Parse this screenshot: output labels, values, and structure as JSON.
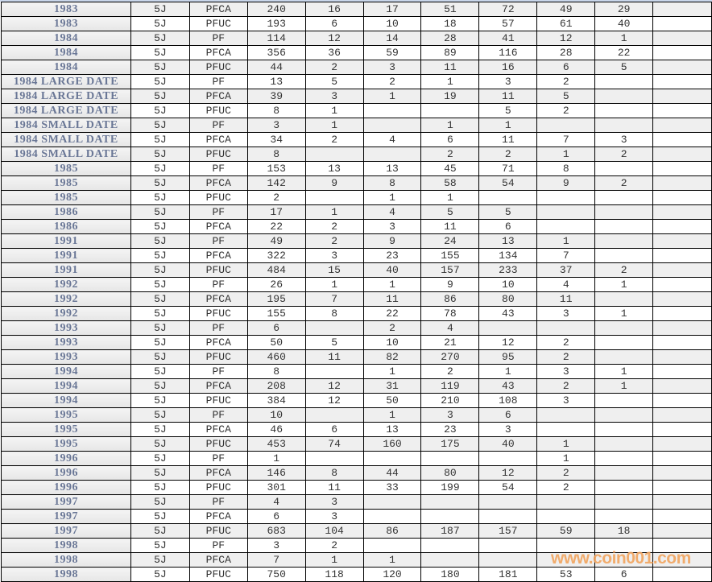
{
  "sheet": {
    "rows": [
      [
        "1983",
        "5J",
        "PFCA",
        "240",
        "16",
        "17",
        "51",
        "72",
        "49",
        "29",
        ""
      ],
      [
        "1983",
        "5J",
        "PFUC",
        "193",
        "6",
        "10",
        "18",
        "57",
        "61",
        "40",
        ""
      ],
      [
        "1984",
        "5J",
        "PF",
        "114",
        "12",
        "14",
        "28",
        "41",
        "12",
        "1",
        ""
      ],
      [
        "1984",
        "5J",
        "PFCA",
        "356",
        "36",
        "59",
        "89",
        "116",
        "28",
        "22",
        ""
      ],
      [
        "1984",
        "5J",
        "PFUC",
        "44",
        "2",
        "3",
        "11",
        "16",
        "6",
        "5",
        ""
      ],
      [
        "1984 LARGE DATE",
        "5J",
        "PF",
        "13",
        "5",
        "2",
        "1",
        "3",
        "2",
        "",
        ""
      ],
      [
        "1984 LARGE DATE",
        "5J",
        "PFCA",
        "39",
        "3",
        "1",
        "19",
        "11",
        "5",
        "",
        ""
      ],
      [
        "1984 LARGE DATE",
        "5J",
        "PFUC",
        "8",
        "1",
        "",
        "",
        "5",
        "2",
        "",
        ""
      ],
      [
        "1984 SMALL DATE",
        "5J",
        "PF",
        "3",
        "1",
        "",
        "1",
        "1",
        "",
        "",
        ""
      ],
      [
        "1984 SMALL DATE",
        "5J",
        "PFCA",
        "34",
        "2",
        "4",
        "6",
        "11",
        "7",
        "3",
        ""
      ],
      [
        "1984 SMALL DATE",
        "5J",
        "PFUC",
        "8",
        "",
        "",
        "2",
        "2",
        "1",
        "2",
        ""
      ],
      [
        "1985",
        "5J",
        "PF",
        "153",
        "13",
        "13",
        "45",
        "71",
        "8",
        "",
        ""
      ],
      [
        "1985",
        "5J",
        "PFCA",
        "142",
        "9",
        "8",
        "58",
        "54",
        "9",
        "2",
        ""
      ],
      [
        "1985",
        "5J",
        "PFUC",
        "2",
        "",
        "1",
        "1",
        "",
        "",
        "",
        ""
      ],
      [
        "1986",
        "5J",
        "PF",
        "17",
        "1",
        "4",
        "5",
        "5",
        "",
        "",
        ""
      ],
      [
        "1986",
        "5J",
        "PFCA",
        "22",
        "2",
        "3",
        "11",
        "6",
        "",
        "",
        ""
      ],
      [
        "1991",
        "5J",
        "PF",
        "49",
        "2",
        "9",
        "24",
        "13",
        "1",
        "",
        ""
      ],
      [
        "1991",
        "5J",
        "PFCA",
        "322",
        "3",
        "23",
        "155",
        "134",
        "7",
        "",
        ""
      ],
      [
        "1991",
        "5J",
        "PFUC",
        "484",
        "15",
        "40",
        "157",
        "233",
        "37",
        "2",
        ""
      ],
      [
        "1992",
        "5J",
        "PF",
        "26",
        "1",
        "1",
        "9",
        "10",
        "4",
        "1",
        ""
      ],
      [
        "1992",
        "5J",
        "PFCA",
        "195",
        "7",
        "11",
        "86",
        "80",
        "11",
        "",
        ""
      ],
      [
        "1992",
        "5J",
        "PFUC",
        "155",
        "8",
        "22",
        "78",
        "43",
        "3",
        "1",
        ""
      ],
      [
        "1993",
        "5J",
        "PF",
        "6",
        "",
        "2",
        "4",
        "",
        "",
        "",
        ""
      ],
      [
        "1993",
        "5J",
        "PFCA",
        "50",
        "5",
        "10",
        "21",
        "12",
        "2",
        "",
        ""
      ],
      [
        "1993",
        "5J",
        "PFUC",
        "460",
        "11",
        "82",
        "270",
        "95",
        "2",
        "",
        ""
      ],
      [
        "1994",
        "5J",
        "PF",
        "8",
        "",
        "1",
        "2",
        "1",
        "3",
        "1",
        ""
      ],
      [
        "1994",
        "5J",
        "PFCA",
        "208",
        "12",
        "31",
        "119",
        "43",
        "2",
        "1",
        ""
      ],
      [
        "1994",
        "5J",
        "PFUC",
        "384",
        "12",
        "50",
        "210",
        "108",
        "3",
        "",
        ""
      ],
      [
        "1995",
        "5J",
        "PF",
        "10",
        "",
        "1",
        "3",
        "6",
        "",
        "",
        ""
      ],
      [
        "1995",
        "5J",
        "PFCA",
        "46",
        "6",
        "13",
        "23",
        "3",
        "",
        "",
        ""
      ],
      [
        "1995",
        "5J",
        "PFUC",
        "453",
        "74",
        "160",
        "175",
        "40",
        "1",
        "",
        ""
      ],
      [
        "1996",
        "5J",
        "PF",
        "1",
        "",
        "",
        "",
        "",
        "1",
        "",
        ""
      ],
      [
        "1996",
        "5J",
        "PFCA",
        "146",
        "8",
        "44",
        "80",
        "12",
        "2",
        "",
        ""
      ],
      [
        "1996",
        "5J",
        "PFUC",
        "301",
        "11",
        "33",
        "199",
        "54",
        "2",
        "",
        ""
      ],
      [
        "1997",
        "5J",
        "PF",
        "4",
        "3",
        "",
        "",
        "",
        "",
        "",
        ""
      ],
      [
        "1997",
        "5J",
        "PFCA",
        "6",
        "3",
        "",
        "",
        "",
        "",
        "",
        ""
      ],
      [
        "1997",
        "5J",
        "PFUC",
        "683",
        "104",
        "86",
        "187",
        "157",
        "59",
        "18",
        ""
      ],
      [
        "1998",
        "5J",
        "PF",
        "3",
        "2",
        "",
        "",
        "",
        "",
        "",
        ""
      ],
      [
        "1998",
        "5J",
        "PFCA",
        "7",
        "1",
        "1",
        "",
        "",
        "",
        "",
        ""
      ],
      [
        "1998",
        "5J",
        "PFUC",
        "750",
        "118",
        "120",
        "180",
        "181",
        "53",
        "6",
        ""
      ]
    ]
  },
  "watermark": "www.coin001.com",
  "colors": {
    "label_text": "#6a7796",
    "cell_text": "#333333",
    "stripe": "#efefef",
    "watermark": "#f2a560"
  }
}
